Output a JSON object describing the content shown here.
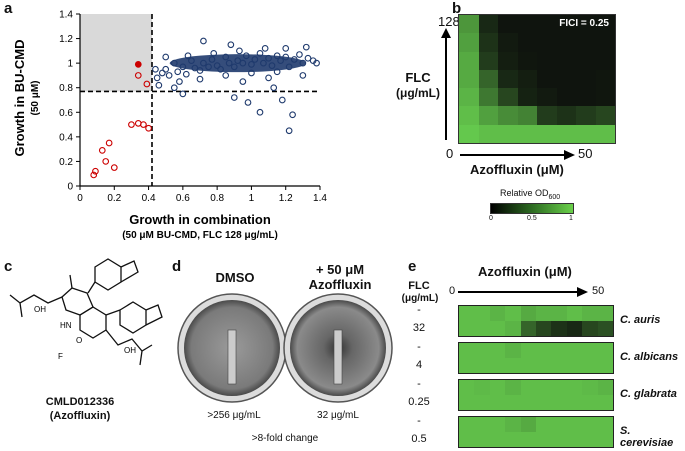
{
  "panels": {
    "a": "a",
    "b": "b",
    "c": "c",
    "d": "d",
    "e": "e"
  },
  "panel_a": {
    "ylabel": "Growth in BU-CMD",
    "ylabel_sub": "(50 μM)",
    "xlabel": "Growth in combination",
    "xlabel_sub": "(50 μM BU-CMD, FLC 128 μg/mL)",
    "x_ticks": [
      "0",
      "0.2",
      "0.4",
      "0.6",
      "0.8",
      "1",
      "1.2",
      "1.4"
    ],
    "y_ticks": [
      "0",
      "0.2",
      "0.4",
      "0.6",
      "0.8",
      "1",
      "1.2",
      "1.4"
    ]
  },
  "chart_data": {
    "type": "scatter",
    "title": "",
    "xlabel": "Growth in combination",
    "ylabel": "Growth in BU-CMD",
    "xlim": [
      0,
      1.4
    ],
    "ylim": [
      0,
      1.4
    ],
    "thresholds": {
      "x": 0.42,
      "y": 0.77
    },
    "shaded_region": {
      "x": [
        0,
        0.42
      ],
      "y": [
        0.77,
        1.4
      ]
    },
    "series": [
      {
        "name": "hits",
        "color": "#cc0000",
        "filled": false,
        "points": [
          [
            0.08,
            0.09
          ],
          [
            0.09,
            0.12
          ],
          [
            0.13,
            0.29
          ],
          [
            0.17,
            0.35
          ],
          [
            0.15,
            0.2
          ],
          [
            0.2,
            0.15
          ],
          [
            0.3,
            0.5
          ],
          [
            0.34,
            0.51
          ],
          [
            0.37,
            0.5
          ],
          [
            0.4,
            0.47
          ],
          [
            0.34,
            0.9
          ],
          [
            0.39,
            0.83
          ]
        ]
      },
      {
        "name": "azoffluxin",
        "color": "#cc0000",
        "filled": true,
        "points": [
          [
            0.34,
            0.99
          ]
        ]
      },
      {
        "name": "library",
        "color": "#1f3a6d",
        "filled": false,
        "points": [
          [
            0.45,
            0.88
          ],
          [
            0.48,
            0.92
          ],
          [
            0.5,
            0.95
          ],
          [
            0.52,
            0.9
          ],
          [
            0.55,
            1.0
          ],
          [
            0.57,
            0.93
          ],
          [
            0.6,
            0.97
          ],
          [
            0.62,
            0.91
          ],
          [
            0.65,
            1.02
          ],
          [
            0.67,
            0.96
          ],
          [
            0.7,
            0.94
          ],
          [
            0.72,
            1.0
          ],
          [
            0.75,
            0.97
          ],
          [
            0.77,
            1.03
          ],
          [
            0.8,
            0.98
          ],
          [
            0.82,
            0.95
          ],
          [
            0.85,
            1.05
          ],
          [
            0.87,
            1.0
          ],
          [
            0.9,
            0.97
          ],
          [
            0.92,
            1.02
          ],
          [
            0.95,
            1.0
          ],
          [
            0.97,
            1.06
          ],
          [
            1.0,
            0.99
          ],
          [
            1.02,
            1.03
          ],
          [
            1.05,
            1.08
          ],
          [
            1.07,
            1.0
          ],
          [
            1.1,
            1.04
          ],
          [
            1.12,
            0.98
          ],
          [
            1.15,
            1.06
          ],
          [
            1.17,
            1.02
          ],
          [
            1.2,
            1.05
          ],
          [
            1.22,
            0.97
          ],
          [
            1.25,
            1.03
          ],
          [
            1.28,
            1.07
          ],
          [
            1.3,
            1.0
          ],
          [
            1.33,
            1.04
          ],
          [
            1.36,
            1.02
          ],
          [
            0.58,
            0.85
          ],
          [
            0.7,
            0.87
          ],
          [
            0.85,
            0.9
          ],
          [
            1.0,
            0.92
          ],
          [
            1.15,
            0.93
          ],
          [
            0.63,
            1.06
          ],
          [
            0.78,
            1.08
          ],
          [
            0.93,
            1.1
          ],
          [
            1.08,
            1.12
          ],
          [
            1.2,
            1.12
          ],
          [
            1.32,
            1.13
          ],
          [
            0.44,
            0.95
          ],
          [
            0.5,
            1.05
          ],
          [
            0.95,
            0.85
          ],
          [
            1.1,
            0.88
          ],
          [
            0.55,
            0.8
          ],
          [
            1.05,
            0.6
          ],
          [
            1.18,
            0.7
          ],
          [
            0.98,
            0.68
          ],
          [
            1.24,
            0.58
          ],
          [
            1.22,
            0.45
          ],
          [
            0.9,
            0.72
          ],
          [
            0.72,
            1.18
          ],
          [
            0.6,
            0.75
          ],
          [
            1.3,
            0.9
          ],
          [
            1.38,
            1.0
          ],
          [
            0.88,
            1.15
          ],
          [
            1.13,
            0.8
          ],
          [
            0.46,
            0.82
          ]
        ]
      }
    ]
  },
  "panel_b": {
    "fici": "FICI = 0.25",
    "y_title": "FLC",
    "y_units": "(μg/mL)",
    "y_top": "128",
    "origin": "0",
    "x_end": "50",
    "x_title": "Azoffluxin (μM)",
    "legend_title": "Relative OD",
    "legend_sub": "600",
    "legend_ticks": [
      "0",
      "0.5",
      "1"
    ],
    "grid": [
      [
        0.7,
        0.15,
        0.05,
        0.05,
        0.05,
        0.05,
        0.05,
        0.05
      ],
      [
        0.75,
        0.2,
        0.08,
        0.05,
        0.05,
        0.05,
        0.05,
        0.05
      ],
      [
        0.8,
        0.25,
        0.1,
        0.06,
        0.05,
        0.05,
        0.05,
        0.05
      ],
      [
        0.8,
        0.45,
        0.15,
        0.1,
        0.05,
        0.05,
        0.05,
        0.06
      ],
      [
        0.85,
        0.55,
        0.3,
        0.12,
        0.08,
        0.05,
        0.05,
        0.06
      ],
      [
        0.9,
        0.75,
        0.65,
        0.6,
        0.25,
        0.2,
        0.25,
        0.3
      ],
      [
        0.95,
        0.9,
        0.9,
        0.9,
        0.9,
        0.9,
        0.9,
        0.9
      ]
    ]
  },
  "panel_c": {
    "compound": "CMLD012336",
    "name": "(Azoffluxin)",
    "atoms": {
      "oh1": "OH",
      "oh2": "OH",
      "hn": "HN",
      "o": "O",
      "f": "F"
    }
  },
  "panel_d": {
    "dmso": "DMSO",
    "treat_line1": "+ 50 μM",
    "treat_line2": "Azoffluxin",
    "mic_left": ">256 μg/mL",
    "mic_right": "32 μg/mL",
    "fold": ">8-fold change"
  },
  "panel_e": {
    "title": "Azoffluxin (μM)",
    "flc_label": "FLC",
    "flc_units": "(μg/mL)",
    "start": "0",
    "end": "50",
    "rows": [
      {
        "species": "C. auris",
        "flc_top": "-",
        "flc_val": "32",
        "grid": [
          [
            0.9,
            0.9,
            0.85,
            0.9,
            0.8,
            0.85,
            0.85,
            0.9,
            0.85,
            0.85
          ],
          [
            0.9,
            0.9,
            0.9,
            0.85,
            0.45,
            0.3,
            0.2,
            0.15,
            0.3,
            0.35
          ]
        ]
      },
      {
        "species": "C. albicans",
        "flc_top": "-",
        "flc_val": "4",
        "grid": [
          [
            0.9,
            0.9,
            0.9,
            0.85,
            0.9,
            0.9,
            0.9,
            0.9,
            0.9,
            0.9
          ],
          [
            0.9,
            0.9,
            0.9,
            0.9,
            0.9,
            0.9,
            0.9,
            0.9,
            0.9,
            0.9
          ]
        ]
      },
      {
        "species": "C. glabrata",
        "flc_top": "-",
        "flc_val": "0.25",
        "grid": [
          [
            0.9,
            0.88,
            0.9,
            0.85,
            0.9,
            0.9,
            0.9,
            0.9,
            0.88,
            0.85
          ],
          [
            0.9,
            0.9,
            0.9,
            0.9,
            0.9,
            0.9,
            0.9,
            0.9,
            0.9,
            0.9
          ]
        ]
      },
      {
        "species": "S. cerevisiae",
        "flc_top": "-",
        "flc_val": "0.5",
        "grid": [
          [
            0.9,
            0.9,
            0.9,
            0.85,
            0.8,
            0.9,
            0.9,
            0.9,
            0.9,
            0.9
          ],
          [
            0.9,
            0.9,
            0.9,
            0.9,
            0.9,
            0.9,
            0.9,
            0.9,
            0.9,
            0.9
          ]
        ]
      }
    ]
  }
}
